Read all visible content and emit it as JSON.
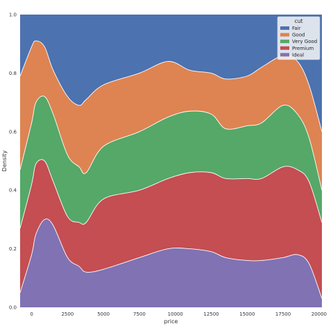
{
  "chart_data": {
    "type": "area",
    "stacking": "fill",
    "xlabel": "price",
    "ylabel": "Density",
    "xlim": [
      -800,
      20200
    ],
    "ylim": [
      0,
      1
    ],
    "x_ticks": [
      0,
      2500,
      5000,
      7500,
      10000,
      12500,
      15000,
      17500,
      20000
    ],
    "x_tick_labels": [
      "0",
      "2500",
      "5000",
      "7500",
      "10000",
      "12500",
      "15000",
      "17500",
      "20000"
    ],
    "y_ticks": [
      0,
      0.2,
      0.4,
      0.6,
      0.8,
      1.0
    ],
    "y_tick_labels": [
      "0.0",
      "0.2",
      "0.4",
      "0.6",
      "0.8",
      "1.0"
    ],
    "grid": false,
    "legend": {
      "title": "cut",
      "placement": "top-right"
    },
    "x": [
      -800,
      0,
      300,
      900,
      1500,
      2500,
      3300,
      3800,
      5000,
      7500,
      9500,
      11000,
      12500,
      13500,
      15000,
      16000,
      17500,
      18500,
      19300,
      20200
    ],
    "boundaries_top_down": [
      {
        "name": "Good",
        "values": [
          0.79,
          0.89,
          0.91,
          0.89,
          0.81,
          0.72,
          0.69,
          0.71,
          0.76,
          0.8,
          0.84,
          0.81,
          0.8,
          0.78,
          0.79,
          0.82,
          0.86,
          0.84,
          0.76,
          0.6
        ]
      },
      {
        "name": "Very Good",
        "values": [
          0.47,
          0.63,
          0.7,
          0.72,
          0.66,
          0.52,
          0.48,
          0.46,
          0.55,
          0.6,
          0.65,
          0.67,
          0.66,
          0.61,
          0.62,
          0.63,
          0.69,
          0.66,
          0.58,
          0.4
        ]
      },
      {
        "name": "Premium",
        "values": [
          0.27,
          0.42,
          0.49,
          0.5,
          0.43,
          0.31,
          0.29,
          0.29,
          0.37,
          0.4,
          0.44,
          0.46,
          0.46,
          0.44,
          0.44,
          0.44,
          0.48,
          0.47,
          0.43,
          0.29
        ]
      },
      {
        "name": "Ideal",
        "values": [
          0.05,
          0.18,
          0.25,
          0.3,
          0.28,
          0.17,
          0.14,
          0.12,
          0.13,
          0.17,
          0.2,
          0.2,
          0.19,
          0.17,
          0.16,
          0.16,
          0.17,
          0.18,
          0.15,
          0.03
        ]
      }
    ],
    "series": [
      {
        "name": "Fair",
        "color": "#4c72b0"
      },
      {
        "name": "Good",
        "color": "#dd8452"
      },
      {
        "name": "Very Good",
        "color": "#55a868"
      },
      {
        "name": "Premium",
        "color": "#c44e52"
      },
      {
        "name": "Ideal",
        "color": "#8172b3"
      }
    ]
  }
}
